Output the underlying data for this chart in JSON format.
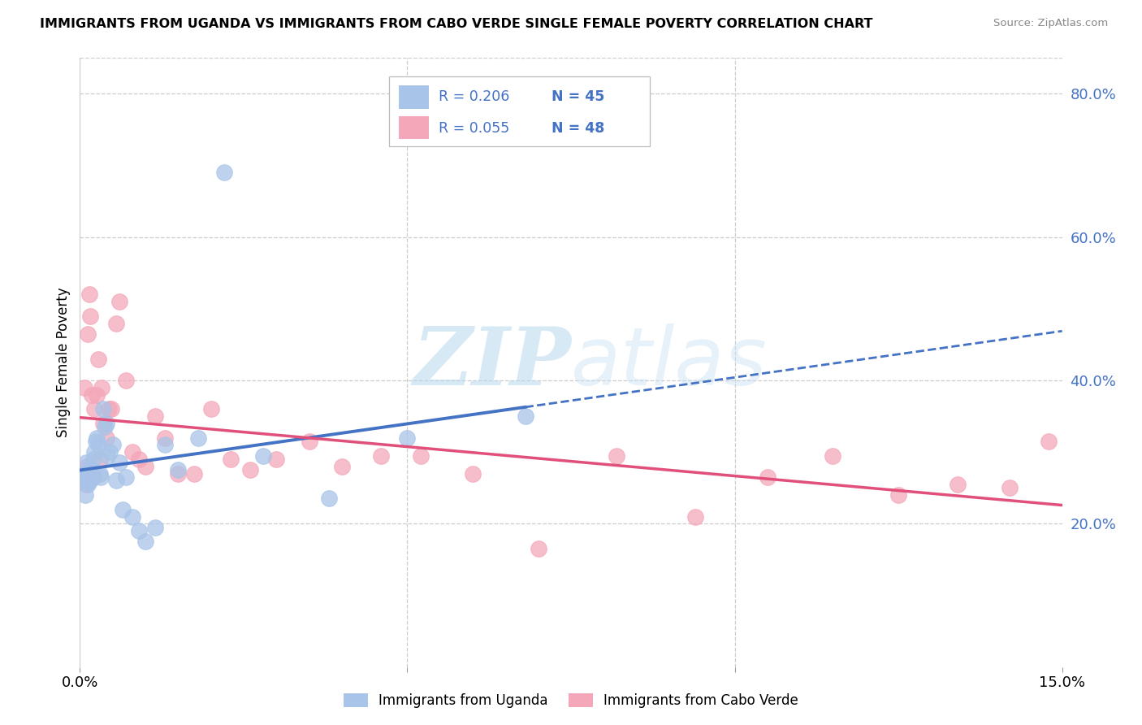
{
  "title": "IMMIGRANTS FROM UGANDA VS IMMIGRANTS FROM CABO VERDE SINGLE FEMALE POVERTY CORRELATION CHART",
  "source": "Source: ZipAtlas.com",
  "ylabel": "Single Female Poverty",
  "right_yticks": [
    "20.0%",
    "40.0%",
    "60.0%",
    "80.0%"
  ],
  "right_ytick_vals": [
    0.2,
    0.4,
    0.6,
    0.8
  ],
  "legend_label1": "Immigrants from Uganda",
  "legend_label2": "Immigrants from Cabo Verde",
  "R1": "0.206",
  "N1": "45",
  "R2": "0.055",
  "N2": "48",
  "color1": "#a8c4e8",
  "color2": "#f4a7b9",
  "line_color1": "#4472c4",
  "line_color2": "#e0507a",
  "watermark_zip": "ZIP",
  "watermark_atlas": "atlas",
  "xmin": 0.0,
  "xmax": 0.15,
  "ymin": 0.0,
  "ymax": 0.85,
  "uganda_x": [
    0.0003,
    0.0005,
    0.0006,
    0.0007,
    0.0008,
    0.0009,
    0.001,
    0.0011,
    0.0012,
    0.0013,
    0.0014,
    0.0015,
    0.0016,
    0.0017,
    0.0018,
    0.0019,
    0.002,
    0.0022,
    0.0024,
    0.0026,
    0.0028,
    0.003,
    0.0032,
    0.0035,
    0.0038,
    0.004,
    0.0042,
    0.0045,
    0.005,
    0.0055,
    0.006,
    0.0065,
    0.007,
    0.008,
    0.009,
    0.01,
    0.0115,
    0.013,
    0.015,
    0.018,
    0.022,
    0.028,
    0.038,
    0.05,
    0.068
  ],
  "uganda_y": [
    0.265,
    0.26,
    0.27,
    0.265,
    0.24,
    0.26,
    0.285,
    0.265,
    0.255,
    0.27,
    0.26,
    0.28,
    0.26,
    0.275,
    0.265,
    0.27,
    0.29,
    0.3,
    0.315,
    0.32,
    0.31,
    0.27,
    0.265,
    0.36,
    0.335,
    0.34,
    0.295,
    0.3,
    0.31,
    0.26,
    0.285,
    0.22,
    0.265,
    0.21,
    0.19,
    0.175,
    0.195,
    0.31,
    0.275,
    0.32,
    0.69,
    0.295,
    0.235,
    0.32,
    0.35
  ],
  "caboverde_x": [
    0.0004,
    0.0006,
    0.0007,
    0.0008,
    0.0009,
    0.001,
    0.0012,
    0.0014,
    0.0016,
    0.0018,
    0.002,
    0.0022,
    0.0025,
    0.0028,
    0.003,
    0.0033,
    0.0036,
    0.004,
    0.0044,
    0.0048,
    0.0055,
    0.006,
    0.007,
    0.008,
    0.009,
    0.01,
    0.0115,
    0.013,
    0.015,
    0.0175,
    0.02,
    0.023,
    0.026,
    0.03,
    0.035,
    0.04,
    0.046,
    0.052,
    0.06,
    0.07,
    0.082,
    0.094,
    0.105,
    0.115,
    0.125,
    0.134,
    0.142,
    0.148
  ],
  "caboverde_y": [
    0.265,
    0.26,
    0.39,
    0.27,
    0.255,
    0.28,
    0.465,
    0.52,
    0.49,
    0.38,
    0.265,
    0.36,
    0.38,
    0.43,
    0.29,
    0.39,
    0.34,
    0.32,
    0.36,
    0.36,
    0.48,
    0.51,
    0.4,
    0.3,
    0.29,
    0.28,
    0.35,
    0.32,
    0.27,
    0.27,
    0.36,
    0.29,
    0.275,
    0.29,
    0.315,
    0.28,
    0.295,
    0.295,
    0.27,
    0.165,
    0.295,
    0.21,
    0.265,
    0.295,
    0.24,
    0.255,
    0.25,
    0.315
  ]
}
